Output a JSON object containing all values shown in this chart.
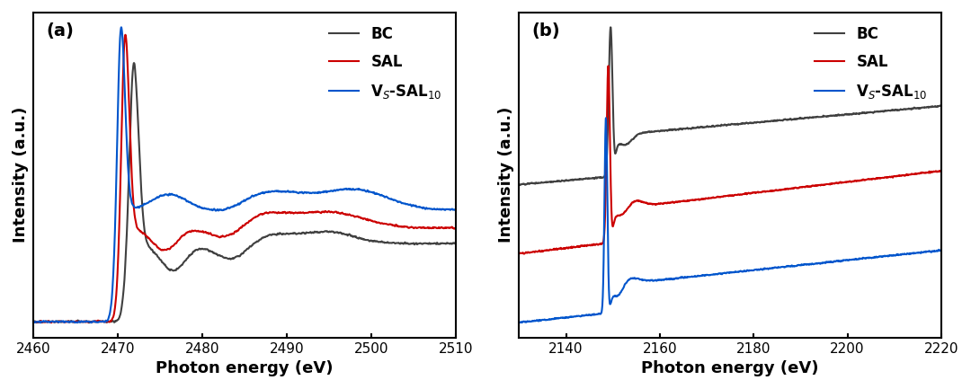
{
  "panel_a": {
    "xlabel": "Photon energy (eV)",
    "ylabel": "Intensity (a.u.)",
    "xlim": [
      2460,
      2510
    ],
    "xticks": [
      2460,
      2470,
      2480,
      2490,
      2500,
      2510
    ],
    "label": "(a)",
    "legend": [
      "BC",
      "SAL",
      "V$_S$-SAL$_{10}$"
    ],
    "colors": [
      "#404040",
      "#cc0000",
      "#0055cc"
    ],
    "linewidth": 1.5
  },
  "panel_b": {
    "xlabel": "Photon energy (eV)",
    "ylabel": "Intensity (a.u.)",
    "xlim": [
      2130,
      2220
    ],
    "xticks": [
      2140,
      2160,
      2180,
      2200,
      2220
    ],
    "label": "(b)",
    "legend": [
      "BC",
      "SAL",
      "V$_S$-SAL$_{10}$"
    ],
    "colors": [
      "#404040",
      "#cc0000",
      "#0055cc"
    ],
    "linewidth": 1.5
  },
  "fig_width": 10.8,
  "fig_height": 4.33,
  "dpi": 100
}
